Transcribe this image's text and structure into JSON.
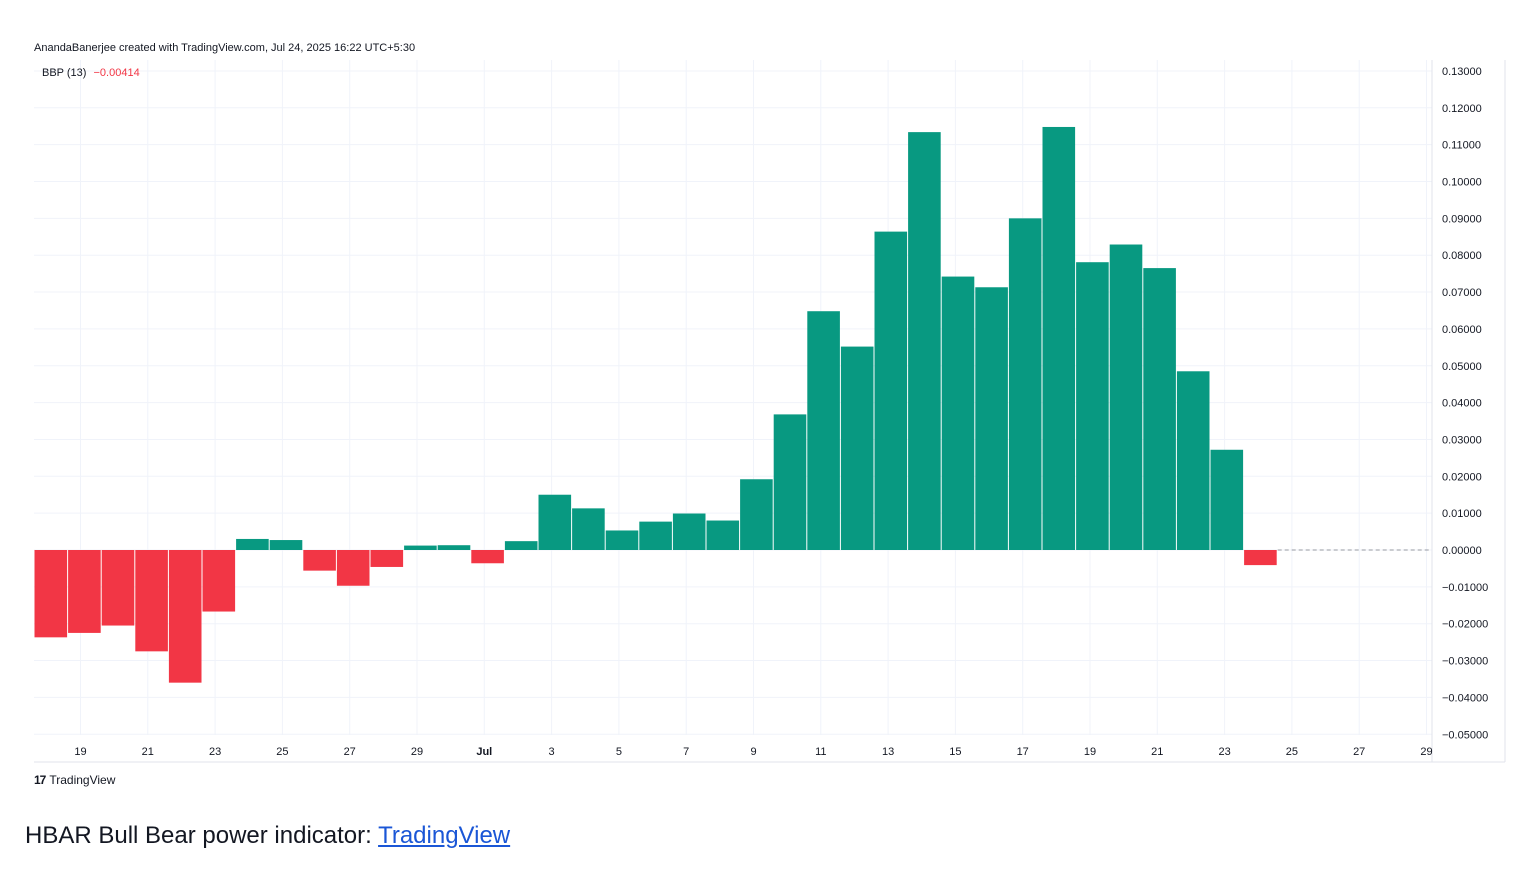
{
  "attribution": "AnandaBanerjee created with TradingView.com, Jul 24, 2025 16:22 UTC+5:30",
  "legend": {
    "name": "BBP (13)",
    "value": "−0.00414",
    "value_color": "#f23645"
  },
  "brand": {
    "logo": "17",
    "name": "TradingView"
  },
  "caption": {
    "text": "HBAR Bull Bear power indicator: ",
    "link": "TradingView"
  },
  "colors": {
    "positive": "#089981",
    "negative": "#f23645",
    "grid": "#f0f3fa",
    "axis_text": "#131722"
  },
  "chart_data": {
    "type": "bar",
    "title": "",
    "series": [
      {
        "name": "BBP (13)",
        "values": [
          -0.0237,
          -0.0225,
          -0.0205,
          -0.0275,
          -0.036,
          -0.0167,
          0.003,
          0.0027,
          -0.0056,
          -0.0097,
          -0.0046,
          0.0012,
          0.0013,
          -0.0036,
          0.0024,
          0.015,
          0.0113,
          0.0053,
          0.0077,
          0.0099,
          0.008,
          0.0192,
          0.0368,
          0.0648,
          0.0552,
          0.0864,
          0.1134,
          0.0742,
          0.0713,
          0.09,
          0.1148,
          0.0781,
          0.0829,
          0.0765,
          0.0485,
          0.0272,
          -0.0041
        ]
      }
    ],
    "categories": [
      "Jun 18",
      "Jun 19",
      "Jun 20",
      "Jun 21",
      "Jun 22",
      "Jun 23",
      "Jun 24",
      "Jun 25",
      "Jun 26",
      "Jun 27",
      "Jun 28",
      "Jun 29",
      "Jun 30",
      "Jul 1",
      "Jul 2",
      "Jul 3",
      "Jul 4",
      "Jul 5",
      "Jul 6",
      "Jul 7",
      "Jul 8",
      "Jul 9",
      "Jul 10",
      "Jul 11",
      "Jul 12",
      "Jul 13",
      "Jul 14",
      "Jul 15",
      "Jul 16",
      "Jul 17",
      "Jul 18",
      "Jul 19",
      "Jul 20",
      "Jul 21",
      "Jul 22",
      "Jul 23",
      "Jul 24"
    ],
    "x_ticks": [
      "19",
      "21",
      "23",
      "25",
      "27",
      "29",
      "Jul",
      "3",
      "5",
      "7",
      "9",
      "11",
      "13",
      "15",
      "17",
      "19",
      "21",
      "23",
      "25",
      "27",
      "29"
    ],
    "y_ticks": [
      "0.13000",
      "0.12000",
      "0.11000",
      "0.10000",
      "0.09000",
      "0.08000",
      "0.07000",
      "0.06000",
      "0.05000",
      "0.04000",
      "0.03000",
      "0.02000",
      "0.01000",
      "0.00000",
      "−0.01000",
      "−0.02000",
      "−0.03000",
      "−0.04000",
      "−0.05000"
    ],
    "ylim": [
      -0.05,
      0.13
    ],
    "grid": true,
    "y_axis_side": "right",
    "zero_line": "dashed"
  }
}
